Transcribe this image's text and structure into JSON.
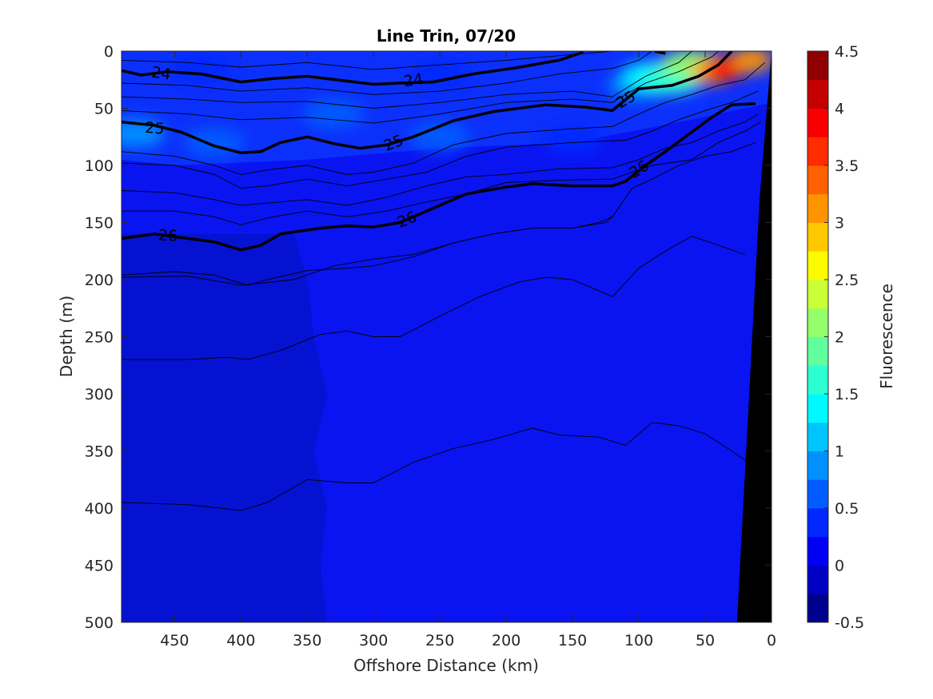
{
  "chart_data": {
    "type": "heatmap",
    "title": "Line Trin, 07/20",
    "xlabel": "Offshore Distance (km)",
    "ylabel": "Depth (m)",
    "colorbar_label": "Fluorescence",
    "xlim": [
      490,
      0
    ],
    "ylim": [
      0,
      500
    ],
    "x_reversed": true,
    "y_reversed": true,
    "xticks": [
      450,
      400,
      350,
      300,
      250,
      200,
      150,
      100,
      50,
      0
    ],
    "yticks": [
      0,
      50,
      100,
      150,
      200,
      250,
      300,
      350,
      400,
      450,
      500
    ],
    "colorbar_ticks": [
      4.5,
      4,
      3.5,
      3,
      2.5,
      2,
      1.5,
      1,
      0.5,
      0,
      -0.5
    ],
    "colorbar_range": [
      -0.5,
      4.5
    ],
    "colorbar_colors": [
      "#00008f",
      "#0000c4",
      "#0000f5",
      "#0028ff",
      "#005cff",
      "#0090ff",
      "#00c4ff",
      "#00f8ff",
      "#2cffd2",
      "#60ff9e",
      "#94ff6a",
      "#c8ff36",
      "#fcfa00",
      "#ffc800",
      "#ff9400",
      "#ff6000",
      "#ff2c00",
      "#f80000",
      "#c40000",
      "#900000"
    ],
    "colors": {
      "ocean_background": "#0a14f0",
      "offshore_deep": "#0612d2",
      "surface_layer": "#0d3cff",
      "bottom_mask": "#000000"
    },
    "fluorescence_patches": [
      {
        "x": 480,
        "y": 72,
        "value": 0.9
      },
      {
        "x": 420,
        "y": 80,
        "value": 0.6
      },
      {
        "x": 430,
        "y": 15,
        "value": 0.4
      },
      {
        "x": 330,
        "y": 55,
        "value": 0.5
      },
      {
        "x": 250,
        "y": 75,
        "value": 0.5
      },
      {
        "x": 150,
        "y": 78,
        "value": 0.4
      },
      {
        "x": 250,
        "y": 20,
        "value": 0.3
      },
      {
        "x": 100,
        "y": 30,
        "value": 0.9
      },
      {
        "x": 90,
        "y": 22,
        "value": 1.3
      },
      {
        "x": 75,
        "y": 25,
        "value": 1.7
      },
      {
        "x": 60,
        "y": 12,
        "value": 2.2
      },
      {
        "x": 45,
        "y": 18,
        "value": 3.1
      },
      {
        "x": 35,
        "y": 15,
        "value": 3.8
      },
      {
        "x": 15,
        "y": 8,
        "value": 3.0
      }
    ],
    "bottom_boundary": [
      {
        "x": 0,
        "depth": 0
      },
      {
        "x": 9,
        "depth": 130
      },
      {
        "x": 26,
        "depth": 500
      }
    ],
    "density_contours": [
      {
        "level": 24,
        "labeled": true,
        "points": [
          [
            490,
            17
          ],
          [
            475,
            21
          ],
          [
            455,
            18
          ],
          [
            430,
            20
          ],
          [
            400,
            27
          ],
          [
            375,
            24
          ],
          [
            350,
            22
          ],
          [
            300,
            29
          ],
          [
            280,
            28
          ],
          [
            255,
            27
          ],
          [
            225,
            20
          ],
          [
            195,
            15
          ],
          [
            160,
            8
          ],
          [
            142,
            1
          ]
        ]
      },
      {
        "level": 24,
        "labeled": false,
        "points": [
          [
            88,
            0
          ],
          [
            80,
            2
          ]
        ]
      },
      {
        "level": 25,
        "labeled": true,
        "points": [
          [
            490,
            62
          ],
          [
            465,
            65
          ],
          [
            445,
            71
          ],
          [
            420,
            83
          ],
          [
            400,
            89
          ],
          [
            385,
            88
          ],
          [
            370,
            80
          ],
          [
            350,
            75
          ],
          [
            330,
            81
          ],
          [
            310,
            85
          ],
          [
            290,
            82
          ],
          [
            270,
            75
          ],
          [
            240,
            61
          ],
          [
            210,
            53
          ],
          [
            170,
            47
          ],
          [
            140,
            49
          ],
          [
            120,
            52
          ],
          [
            100,
            33
          ],
          [
            75,
            30
          ],
          [
            55,
            22
          ],
          [
            40,
            12
          ],
          [
            30,
            0
          ]
        ]
      },
      {
        "level": 26,
        "labeled": true,
        "points": [
          [
            490,
            164
          ],
          [
            465,
            160
          ],
          [
            440,
            164
          ],
          [
            420,
            167
          ],
          [
            400,
            174
          ],
          [
            385,
            170
          ],
          [
            370,
            160
          ],
          [
            340,
            155
          ],
          [
            320,
            153
          ],
          [
            300,
            154
          ],
          [
            280,
            150
          ],
          [
            250,
            135
          ],
          [
            230,
            125
          ],
          [
            200,
            119
          ],
          [
            180,
            116
          ],
          [
            150,
            118
          ],
          [
            120,
            118
          ],
          [
            110,
            114
          ],
          [
            95,
            100
          ],
          [
            80,
            88
          ],
          [
            65,
            75
          ],
          [
            45,
            58
          ],
          [
            30,
            47
          ],
          [
            12,
            46
          ]
        ]
      }
    ],
    "thin_contours": [
      [
        [
          490,
          8
        ],
        [
          440,
          10
        ],
        [
          400,
          14
        ],
        [
          350,
          10
        ],
        [
          300,
          16
        ],
        [
          250,
          12
        ],
        [
          200,
          8
        ],
        [
          150,
          3
        ],
        [
          120,
          0
        ]
      ],
      [
        [
          490,
          28
        ],
        [
          440,
          30
        ],
        [
          400,
          35
        ],
        [
          350,
          32
        ],
        [
          300,
          38
        ],
        [
          250,
          35
        ],
        [
          200,
          28
        ],
        [
          160,
          20
        ],
        [
          120,
          15
        ],
        [
          100,
          8
        ],
        [
          90,
          0
        ]
      ],
      [
        [
          490,
          40
        ],
        [
          440,
          42
        ],
        [
          400,
          45
        ],
        [
          350,
          44
        ],
        [
          300,
          50
        ],
        [
          250,
          45
        ],
        [
          200,
          38
        ],
        [
          150,
          35
        ],
        [
          120,
          40
        ],
        [
          95,
          22
        ],
        [
          70,
          10
        ],
        [
          60,
          0
        ]
      ],
      [
        [
          490,
          52
        ],
        [
          440,
          55
        ],
        [
          400,
          60
        ],
        [
          350,
          58
        ],
        [
          300,
          63
        ],
        [
          250,
          55
        ],
        [
          200,
          45
        ],
        [
          150,
          42
        ],
        [
          120,
          45
        ],
        [
          95,
          28
        ],
        [
          70,
          18
        ],
        [
          45,
          5
        ],
        [
          40,
          0
        ]
      ],
      [
        [
          490,
          88
        ],
        [
          450,
          92
        ],
        [
          420,
          100
        ],
        [
          400,
          108
        ],
        [
          380,
          104
        ],
        [
          350,
          100
        ],
        [
          320,
          108
        ],
        [
          300,
          106
        ],
        [
          270,
          98
        ],
        [
          240,
          82
        ],
        [
          200,
          72
        ],
        [
          150,
          68
        ],
        [
          120,
          66
        ],
        [
          100,
          55
        ],
        [
          80,
          45
        ],
        [
          60,
          38
        ],
        [
          40,
          30
        ],
        [
          20,
          25
        ],
        [
          5,
          10
        ]
      ],
      [
        [
          490,
          98
        ],
        [
          450,
          100
        ],
        [
          420,
          108
        ],
        [
          400,
          120
        ],
        [
          380,
          118
        ],
        [
          350,
          112
        ],
        [
          320,
          118
        ],
        [
          290,
          112
        ],
        [
          260,
          106
        ],
        [
          230,
          92
        ],
        [
          200,
          84
        ],
        [
          150,
          80
        ],
        [
          110,
          78
        ],
        [
          90,
          70
        ],
        [
          70,
          60
        ],
        [
          50,
          52
        ],
        [
          30,
          45
        ],
        [
          10,
          35
        ]
      ],
      [
        [
          490,
          122
        ],
        [
          450,
          124
        ],
        [
          420,
          130
        ],
        [
          400,
          135
        ],
        [
          380,
          133
        ],
        [
          350,
          130
        ],
        [
          320,
          135
        ],
        [
          290,
          128
        ],
        [
          260,
          118
        ],
        [
          230,
          110
        ],
        [
          200,
          108
        ],
        [
          160,
          103
        ],
        [
          120,
          102
        ],
        [
          100,
          95
        ],
        [
          80,
          85
        ],
        [
          60,
          80
        ],
        [
          40,
          70
        ],
        [
          20,
          62
        ],
        [
          10,
          55
        ]
      ],
      [
        [
          490,
          140
        ],
        [
          450,
          140
        ],
        [
          420,
          145
        ],
        [
          400,
          152
        ],
        [
          380,
          146
        ],
        [
          350,
          140
        ],
        [
          320,
          145
        ],
        [
          290,
          140
        ],
        [
          260,
          132
        ],
        [
          230,
          125
        ],
        [
          200,
          115
        ],
        [
          160,
          113
        ],
        [
          120,
          112
        ],
        [
          90,
          100
        ],
        [
          60,
          95
        ],
        [
          40,
          80
        ],
        [
          20,
          70
        ],
        [
          8,
          62
        ]
      ],
      [
        [
          490,
          196
        ],
        [
          450,
          193
        ],
        [
          420,
          196
        ],
        [
          395,
          205
        ],
        [
          380,
          200
        ],
        [
          350,
          192
        ],
        [
          320,
          190
        ],
        [
          300,
          188
        ],
        [
          270,
          180
        ],
        [
          240,
          168
        ],
        [
          210,
          160
        ],
        [
          180,
          155
        ],
        [
          150,
          155
        ],
        [
          130,
          150
        ],
        [
          120,
          145
        ],
        [
          105,
          120
        ],
        [
          90,
          112
        ],
        [
          70,
          100
        ],
        [
          50,
          92
        ],
        [
          30,
          88
        ],
        [
          12,
          80
        ]
      ],
      [
        [
          490,
          198
        ],
        [
          440,
          197
        ],
        [
          400,
          205
        ],
        [
          360,
          200
        ],
        [
          330,
          188
        ],
        [
          300,
          182
        ],
        [
          270,
          178
        ],
        [
          240,
          168
        ],
        [
          210,
          160
        ],
        [
          180,
          155
        ],
        [
          150,
          155
        ],
        [
          125,
          150
        ],
        [
          120,
          145
        ]
      ],
      [
        [
          490,
          270
        ],
        [
          440,
          270
        ],
        [
          410,
          268
        ],
        [
          395,
          270
        ],
        [
          370,
          262
        ],
        [
          340,
          248
        ],
        [
          320,
          245
        ],
        [
          300,
          250
        ],
        [
          280,
          250
        ],
        [
          250,
          232
        ],
        [
          220,
          215
        ],
        [
          190,
          202
        ],
        [
          170,
          198
        ],
        [
          150,
          200
        ],
        [
          120,
          215
        ],
        [
          100,
          190
        ],
        [
          80,
          175
        ],
        [
          60,
          162
        ],
        [
          40,
          170
        ],
        [
          20,
          178
        ]
      ],
      [
        [
          490,
          395
        ],
        [
          440,
          397
        ],
        [
          400,
          402
        ],
        [
          380,
          395
        ],
        [
          350,
          375
        ],
        [
          320,
          378
        ],
        [
          300,
          378
        ],
        [
          270,
          360
        ],
        [
          240,
          348
        ],
        [
          210,
          340
        ],
        [
          180,
          330
        ],
        [
          160,
          336
        ],
        [
          130,
          338
        ],
        [
          110,
          345
        ],
        [
          90,
          325
        ],
        [
          70,
          328
        ],
        [
          50,
          335
        ],
        [
          30,
          350
        ],
        [
          20,
          358
        ]
      ]
    ],
    "contour_labels": [
      {
        "text": "24",
        "x": 460,
        "y": 19,
        "angle": 8
      },
      {
        "text": "24",
        "x": 270,
        "y": 25,
        "angle": -8
      },
      {
        "text": "25",
        "x": 465,
        "y": 67,
        "angle": 5
      },
      {
        "text": "25",
        "x": 285,
        "y": 80,
        "angle": -22
      },
      {
        "text": "25",
        "x": 110,
        "y": 42,
        "angle": -30
      },
      {
        "text": "26",
        "x": 455,
        "y": 161,
        "angle": 3
      },
      {
        "text": "26",
        "x": 275,
        "y": 147,
        "angle": -22
      },
      {
        "text": "26",
        "x": 100,
        "y": 103,
        "angle": -32
      }
    ]
  }
}
